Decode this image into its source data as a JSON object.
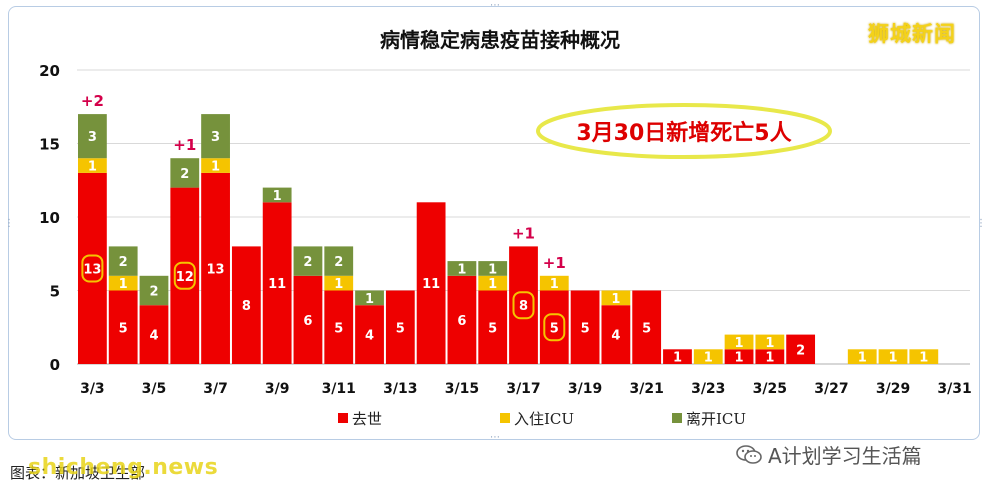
{
  "brand": "狮城新闻",
  "caption": "图表：新加坡卫生部",
  "watermark_site": "shicheng.news",
  "watermark_account": "A计划学习生活篇",
  "colors": {
    "death": "#ee0000",
    "icu_in": "#f5c400",
    "icu_out": "#76923c",
    "callout_border": "#e8e84a",
    "callout_text": "#dd0000",
    "circle": "#f5c400",
    "plus": "#d4004a"
  },
  "chart_data": {
    "type": "bar",
    "stacked": true,
    "title": "病情稳定病患疫苗接种概况",
    "ylim": [
      0,
      20
    ],
    "yticks": [
      0,
      5,
      10,
      15,
      20
    ],
    "categories": [
      "3/3",
      "3/4",
      "3/5",
      "3/6",
      "3/7",
      "3/8",
      "3/9",
      "3/10",
      "3/11",
      "3/12",
      "3/13",
      "3/14",
      "3/15",
      "3/16",
      "3/17",
      "3/18",
      "3/19",
      "3/20",
      "3/21",
      "3/22",
      "3/23",
      "3/24",
      "3/25",
      "3/26",
      "3/27",
      "3/28",
      "3/29",
      "3/30",
      "3/31"
    ],
    "xtick_labels": [
      "3/3",
      "3/5",
      "3/7",
      "3/9",
      "3/11",
      "3/13",
      "3/15",
      "3/17",
      "3/19",
      "3/21",
      "3/23",
      "3/25",
      "3/27",
      "3/29",
      "3/31"
    ],
    "series": [
      {
        "name": "去世",
        "key": "death",
        "values": [
          13,
          5,
          4,
          12,
          13,
          8,
          11,
          6,
          5,
          4,
          5,
          11,
          6,
          5,
          8,
          5,
          5,
          4,
          5,
          1,
          0,
          1,
          1,
          2,
          0,
          0,
          0,
          0,
          0
        ]
      },
      {
        "name": "入住ICU",
        "key": "icu_in",
        "values": [
          1,
          1,
          0,
          0,
          1,
          0,
          0,
          0,
          1,
          0,
          0,
          0,
          0,
          1,
          0,
          1,
          0,
          1,
          0,
          0,
          1,
          1,
          1,
          0,
          0,
          1,
          1,
          1,
          0
        ]
      },
      {
        "name": "离开ICU",
        "key": "icu_out",
        "values": [
          3,
          2,
          2,
          2,
          3,
          0,
          1,
          2,
          2,
          1,
          0,
          0,
          1,
          1,
          0,
          0,
          0,
          0,
          0,
          0,
          0,
          0,
          0,
          0,
          0,
          0,
          0,
          0,
          0
        ]
      }
    ],
    "circled_categories": [
      "3/3",
      "3/6",
      "3/17",
      "3/18"
    ],
    "annotations": [
      {
        "category": "3/3",
        "text": "+2"
      },
      {
        "category": "3/6",
        "text": "+1"
      },
      {
        "category": "3/17",
        "text": "+1"
      },
      {
        "category": "3/18",
        "text": "+1"
      }
    ],
    "callout": "3月30日新增死亡5人",
    "legend": [
      "去世",
      "入住ICU",
      "离开ICU"
    ],
    "legend_position": "bottom",
    "grid": true
  }
}
